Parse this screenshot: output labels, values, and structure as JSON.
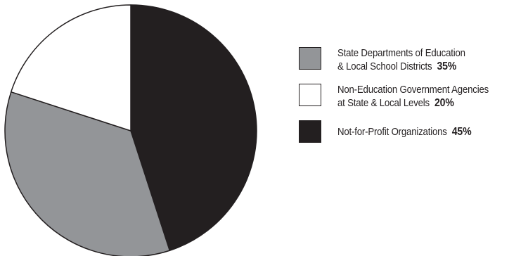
{
  "chart_data": {
    "type": "pie",
    "slices": [
      {
        "label_line1": "State Departments of Education",
        "label_line2": "& Local School Districts",
        "percent_label": "35%",
        "value": 35,
        "color": "#939598"
      },
      {
        "label_line1": "Non-Education Government Agencies",
        "label_line2": "at State & Local Levels",
        "percent_label": "20%",
        "value": 20,
        "color": "#ffffff"
      },
      {
        "label_line1": "Not-for-Profit Organizations",
        "label_line2": "",
        "percent_label": "45%",
        "value": 45,
        "color": "#231f20"
      }
    ],
    "start_angle_deg": 0,
    "direction": "clockwise",
    "draw_order": [
      2,
      0,
      1
    ],
    "stroke_color": "#231f20",
    "legend_position": "right"
  }
}
